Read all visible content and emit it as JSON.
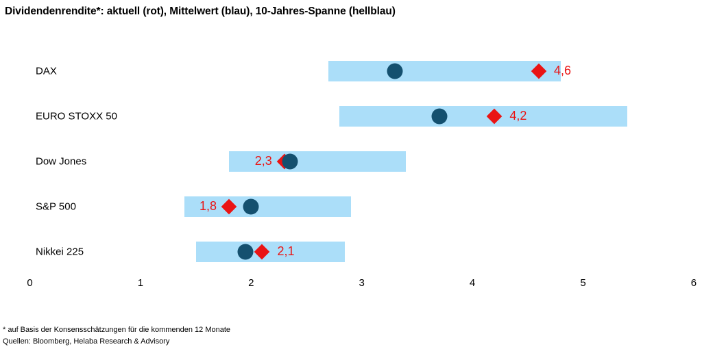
{
  "title": "Dividendenrendite*: aktuell (rot), Mittelwert (blau), 10-Jahres-Spanne (hellblau)",
  "footnote": "* auf Basis der Konsensschätzungen für die kommenden 12 Monate",
  "source": "Quellen: Bloomberg, Helaba Research & Advisory",
  "colors": {
    "hellblau_range_bar": "#abdef9",
    "blau_mean_dot": "#14506f",
    "rot_current": "#ea1414",
    "text": "#000000",
    "background": "#ffffff"
  },
  "chart_data": {
    "type": "bar",
    "subtype": "horizontal-floating-range-with-markers",
    "title": "Dividendenrendite*: aktuell (rot), Mittelwert (blau), 10-Jahres-Spanne (hellblau)",
    "categories": [
      "DAX",
      "EURO STOXX 50",
      "Dow Jones",
      "S&P 500",
      "Nikkei 225"
    ],
    "series": [
      {
        "name": "10-Jahres-Spanne (hellblau)",
        "marker": "range-bar",
        "low": [
          2.7,
          2.8,
          1.8,
          1.4,
          1.5
        ],
        "high": [
          4.8,
          5.4,
          3.4,
          2.9,
          2.85
        ]
      },
      {
        "name": "Mittelwert (blau)",
        "marker": "circle",
        "values": [
          3.3,
          3.7,
          2.35,
          2.0,
          1.95
        ]
      },
      {
        "name": "aktuell (rot)",
        "marker": "diamond",
        "values": [
          4.6,
          4.2,
          2.3,
          1.8,
          2.1
        ],
        "labels": [
          "4,6",
          "4,2",
          "2,3",
          "1,8",
          "2,1"
        ],
        "label_side": [
          "right",
          "right",
          "left",
          "left",
          "right"
        ]
      }
    ],
    "x_ticks": [
      "0",
      "1",
      "2",
      "3",
      "4",
      "5",
      "6"
    ],
    "xlim": [
      0,
      6
    ],
    "xlabel": "",
    "ylabel": "",
    "grid": false,
    "legend_position": "encoded-in-title"
  }
}
